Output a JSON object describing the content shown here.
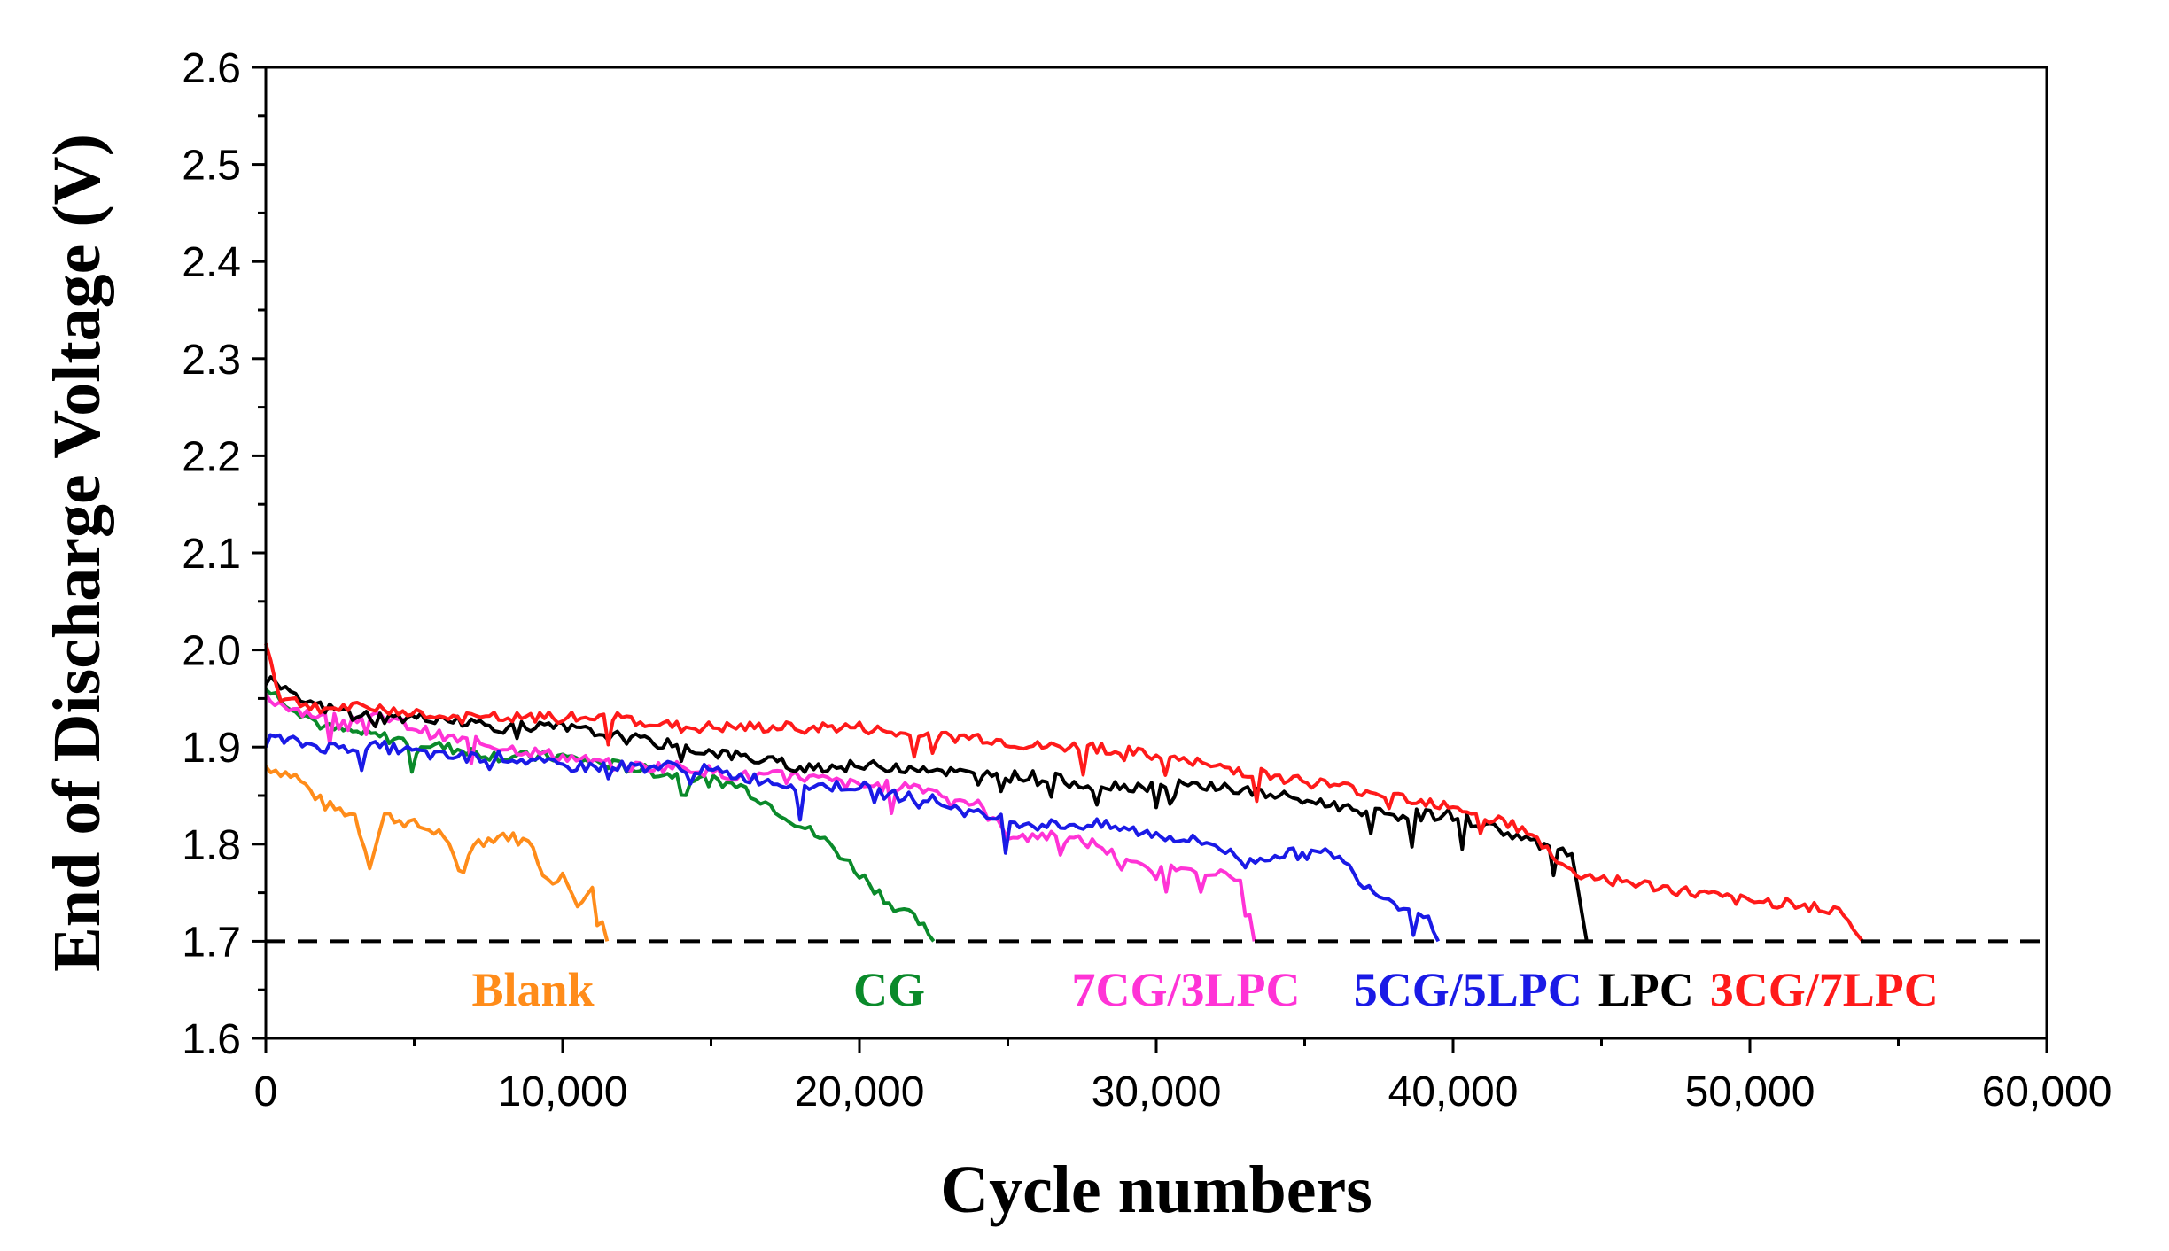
{
  "chart_data": {
    "type": "line",
    "title": "",
    "xlabel": "Cycle numbers",
    "ylabel": "End of Discharge Voltage (V)",
    "xlim": [
      0,
      60000
    ],
    "ylim": [
      1.6,
      2.6
    ],
    "x_ticks": [
      0,
      10000,
      20000,
      30000,
      40000,
      50000,
      60000
    ],
    "x_tick_labels": [
      "0",
      "10,000",
      "20,000",
      "30,000",
      "40,000",
      "50,000",
      "60,000"
    ],
    "y_ticks": [
      1.6,
      1.7,
      1.8,
      1.9,
      2.0,
      2.1,
      2.2,
      2.3,
      2.4,
      2.5,
      2.6
    ],
    "y_tick_labels": [
      "1.6",
      "1.7",
      "1.8",
      "1.9",
      "2.0",
      "2.1",
      "2.2",
      "2.3",
      "2.4",
      "2.5",
      "2.6"
    ],
    "cutoff": {
      "y": 1.7,
      "style": "dashed"
    },
    "grid": false,
    "legend": "labels placed along the cutoff line at the end of each series",
    "series": [
      {
        "name": "Blank",
        "color": "#ff8c1a",
        "label_x": 9000,
        "x": [
          0,
          1000,
          2000,
          3000,
          3500,
          4000,
          5000,
          6000,
          6500,
          7000,
          8000,
          9000,
          9500,
          10000,
          10500,
          11000,
          11500
        ],
        "y": [
          1.88,
          1.87,
          1.84,
          1.83,
          1.78,
          1.83,
          1.82,
          1.81,
          1.77,
          1.8,
          1.81,
          1.8,
          1.76,
          1.77,
          1.74,
          1.76,
          1.7
        ]
      },
      {
        "name": "CG",
        "color": "#0a8a2a",
        "label_x": 21000,
        "x": [
          0,
          1000,
          2000,
          4000,
          6000,
          8000,
          10000,
          12000,
          14000,
          16000,
          17000,
          18000,
          19000,
          20000,
          21000,
          22000,
          22500
        ],
        "y": [
          1.96,
          1.94,
          1.92,
          1.91,
          1.9,
          1.89,
          1.89,
          1.88,
          1.87,
          1.86,
          1.84,
          1.82,
          1.8,
          1.77,
          1.74,
          1.72,
          1.7
        ]
      },
      {
        "name": "7CG/3LPC",
        "color": "#ff33d6",
        "label_x": 31000,
        "x": [
          0,
          2000,
          4000,
          6000,
          8000,
          10000,
          12000,
          14000,
          16000,
          18000,
          20000,
          22000,
          24000,
          25000,
          26000,
          28000,
          29000,
          30000,
          31000,
          32000,
          33000,
          33300
        ],
        "y": [
          1.95,
          1.93,
          1.93,
          1.91,
          1.9,
          1.89,
          1.88,
          1.88,
          1.87,
          1.87,
          1.86,
          1.86,
          1.84,
          1.81,
          1.81,
          1.8,
          1.78,
          1.77,
          1.78,
          1.77,
          1.76,
          1.7
        ]
      },
      {
        "name": "5CG/5LPC",
        "color": "#1a1ae6",
        "label_x": 40500,
        "x": [
          0,
          2000,
          4000,
          6000,
          8000,
          10000,
          12000,
          14000,
          16000,
          18000,
          20000,
          21000,
          22000,
          24000,
          26000,
          28000,
          30000,
          32000,
          33000,
          34000,
          36000,
          37000,
          38000,
          39000,
          39500
        ],
        "y": [
          1.91,
          1.9,
          1.9,
          1.89,
          1.89,
          1.88,
          1.88,
          1.88,
          1.87,
          1.86,
          1.86,
          1.85,
          1.85,
          1.83,
          1.82,
          1.82,
          1.81,
          1.8,
          1.78,
          1.79,
          1.79,
          1.76,
          1.74,
          1.73,
          1.7
        ]
      },
      {
        "name": "LPC",
        "color": "#000000",
        "label_x": 46500,
        "x": [
          0,
          1000,
          2000,
          4000,
          6000,
          8000,
          10000,
          12000,
          14000,
          16000,
          18000,
          20000,
          22000,
          24000,
          26000,
          28000,
          30000,
          32000,
          34000,
          36000,
          38000,
          40000,
          42000,
          44000,
          44500
        ],
        "y": [
          1.97,
          1.95,
          1.94,
          1.93,
          1.93,
          1.92,
          1.92,
          1.91,
          1.9,
          1.89,
          1.88,
          1.88,
          1.88,
          1.87,
          1.87,
          1.86,
          1.86,
          1.86,
          1.85,
          1.84,
          1.83,
          1.83,
          1.81,
          1.79,
          1.7
        ]
      },
      {
        "name": "3CG/7LPC",
        "color": "#ff1a1a",
        "label_x": 52500,
        "x": [
          0,
          500,
          2000,
          4000,
          6000,
          8000,
          10000,
          12000,
          14000,
          16000,
          18000,
          20000,
          22000,
          24000,
          26000,
          28000,
          30000,
          32000,
          34000,
          36000,
          38000,
          40000,
          42000,
          43000,
          44000,
          46000,
          48000,
          50000,
          52000,
          53000,
          53800
        ],
        "y": [
          2.01,
          1.95,
          1.94,
          1.94,
          1.93,
          1.93,
          1.93,
          1.93,
          1.92,
          1.92,
          1.92,
          1.92,
          1.91,
          1.91,
          1.9,
          1.9,
          1.89,
          1.88,
          1.87,
          1.86,
          1.85,
          1.84,
          1.82,
          1.8,
          1.77,
          1.76,
          1.75,
          1.74,
          1.74,
          1.73,
          1.7
        ]
      }
    ]
  }
}
